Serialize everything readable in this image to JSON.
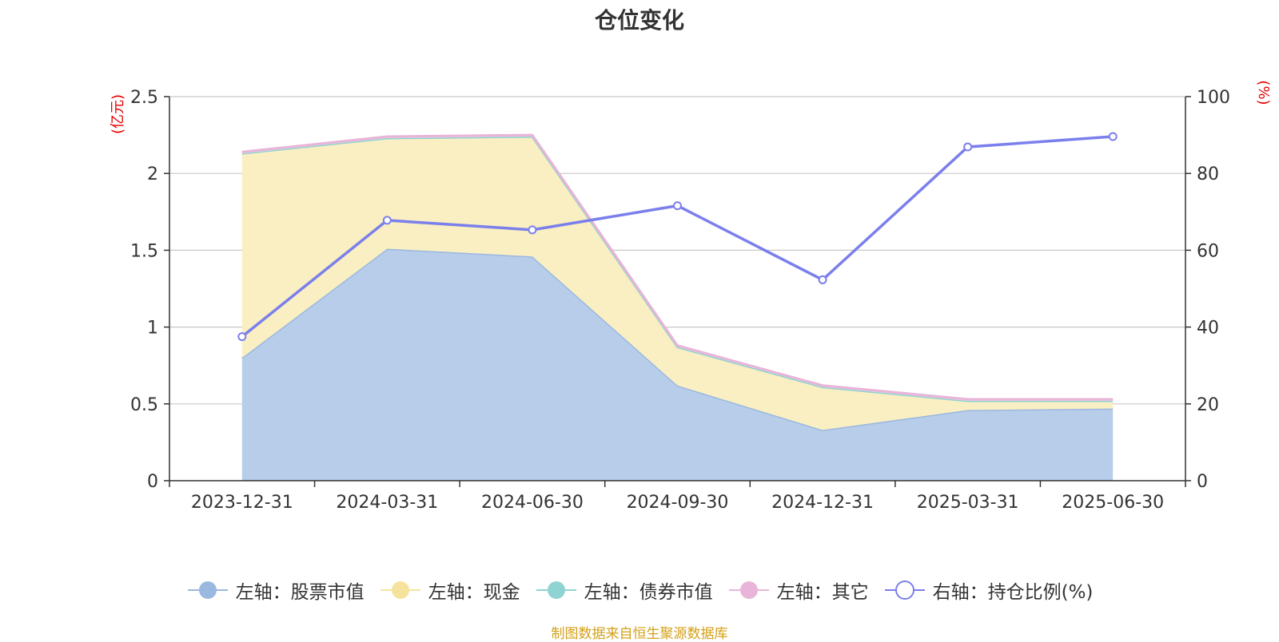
{
  "chart_data": {
    "type": "area",
    "title": "仓位变化",
    "categories": [
      "2023-12-31",
      "2024-03-31",
      "2024-06-30",
      "2024-09-30",
      "2024-12-31",
      "2025-03-31",
      "2025-06-30"
    ],
    "left_axis": {
      "unit": "(亿元)",
      "ylim": [
        0,
        2.5
      ],
      "ticks": [
        "0",
        "0.5",
        "1",
        "1.5",
        "2",
        "2.5"
      ]
    },
    "right_axis": {
      "unit": "(%)",
      "ylim": [
        0,
        100
      ],
      "ticks": [
        "0",
        "20",
        "40",
        "60",
        "80",
        "100"
      ]
    },
    "series": [
      {
        "name": "左轴：股票市值",
        "axis": "left",
        "kind": "area",
        "color": "#9ab8e0",
        "fill": "#b8cdea",
        "values": [
          0.8,
          1.51,
          1.46,
          0.62,
          0.33,
          0.46,
          0.47
        ]
      },
      {
        "name": "左轴：现金",
        "axis": "left",
        "kind": "area",
        "color": "#f5e39b",
        "fill": "#faefc2",
        "values": [
          1.33,
          0.72,
          0.78,
          0.25,
          0.28,
          0.06,
          0.05
        ]
      },
      {
        "name": "左轴：债券市值",
        "axis": "left",
        "kind": "area",
        "color": "#8fd3d3",
        "fill": "#b6e3e3",
        "values": [
          0,
          0,
          0,
          0,
          0,
          0,
          0
        ]
      },
      {
        "name": "左轴：其它",
        "axis": "left",
        "kind": "area",
        "color": "#e8b4d8",
        "fill": "#f2d3e8",
        "values": [
          0.01,
          0.01,
          0.01,
          0.01,
          0.01,
          0.01,
          0.01
        ]
      },
      {
        "name": "右轴：持仓比例(%)",
        "axis": "right",
        "kind": "line",
        "color": "#7b7fec",
        "values": [
          37.5,
          67.8,
          65.3,
          71.6,
          52.3,
          86.9,
          89.6
        ]
      }
    ],
    "grid": true,
    "legend_position": "bottom"
  },
  "source_note": "制图数据来自恒生聚源数据库"
}
